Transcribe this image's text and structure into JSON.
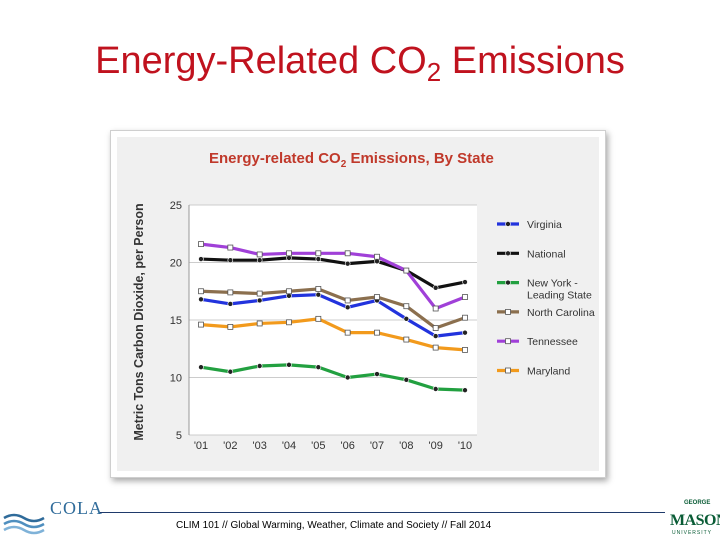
{
  "slide": {
    "title_main": "Energy-Related CO",
    "title_sub": "2",
    "title_rest": " Emissions"
  },
  "footer": {
    "text": "CLIM 101 // Global Warming, Weather, Climate and Society // Fall 2014"
  },
  "logos": {
    "left_text": "COLA",
    "right_text": "MASON",
    "right_top": "GEORGE",
    "right_bottom": "UNIVERSITY"
  },
  "chart_data": {
    "type": "line",
    "title": "Energy-related CO",
    "title_sub": "2",
    "title_rest": " Emissions, By State",
    "xlabel": "",
    "ylabel": "Metric Tons Carbon Dioxide, per Person",
    "ylim": [
      5,
      25
    ],
    "yticks": [
      "5",
      "10",
      "15",
      "20",
      "25"
    ],
    "categories": [
      "'01",
      "'02",
      "'03",
      "'04",
      "'05",
      "'06",
      "'07",
      "'08",
      "'09",
      "'10"
    ],
    "grid": true,
    "legend_position": "right",
    "series": [
      {
        "name": "Virginia",
        "color": "#2233dd",
        "marker": "circle",
        "values": [
          16.8,
          16.4,
          16.7,
          17.1,
          17.2,
          16.1,
          16.7,
          15.1,
          13.6,
          13.9
        ]
      },
      {
        "name": "National",
        "color": "#111111",
        "marker": "circle",
        "values": [
          20.3,
          20.2,
          20.2,
          20.4,
          20.3,
          19.9,
          20.1,
          19.3,
          17.8,
          18.3
        ]
      },
      {
        "name": "New York - Leading State",
        "legend_lines": [
          "New York -",
          "Leading State"
        ],
        "color": "#22a040",
        "marker": "circle",
        "values": [
          10.9,
          10.5,
          11.0,
          11.1,
          10.9,
          10.0,
          10.3,
          9.8,
          9.0,
          8.9
        ]
      },
      {
        "name": "North Carolina",
        "color": "#8b6f4e",
        "marker": "square",
        "values": [
          17.5,
          17.4,
          17.3,
          17.5,
          17.7,
          16.7,
          17.0,
          16.2,
          14.3,
          15.2
        ]
      },
      {
        "name": "Tennessee",
        "color": "#a040d8",
        "marker": "square",
        "values": [
          21.6,
          21.3,
          20.7,
          20.8,
          20.8,
          20.8,
          20.5,
          19.3,
          16.0,
          17.0
        ]
      },
      {
        "name": "Maryland",
        "color": "#f29a1c",
        "marker": "square",
        "values": [
          14.6,
          14.4,
          14.7,
          14.8,
          15.1,
          13.9,
          13.9,
          13.3,
          12.6,
          12.4
        ]
      }
    ]
  }
}
